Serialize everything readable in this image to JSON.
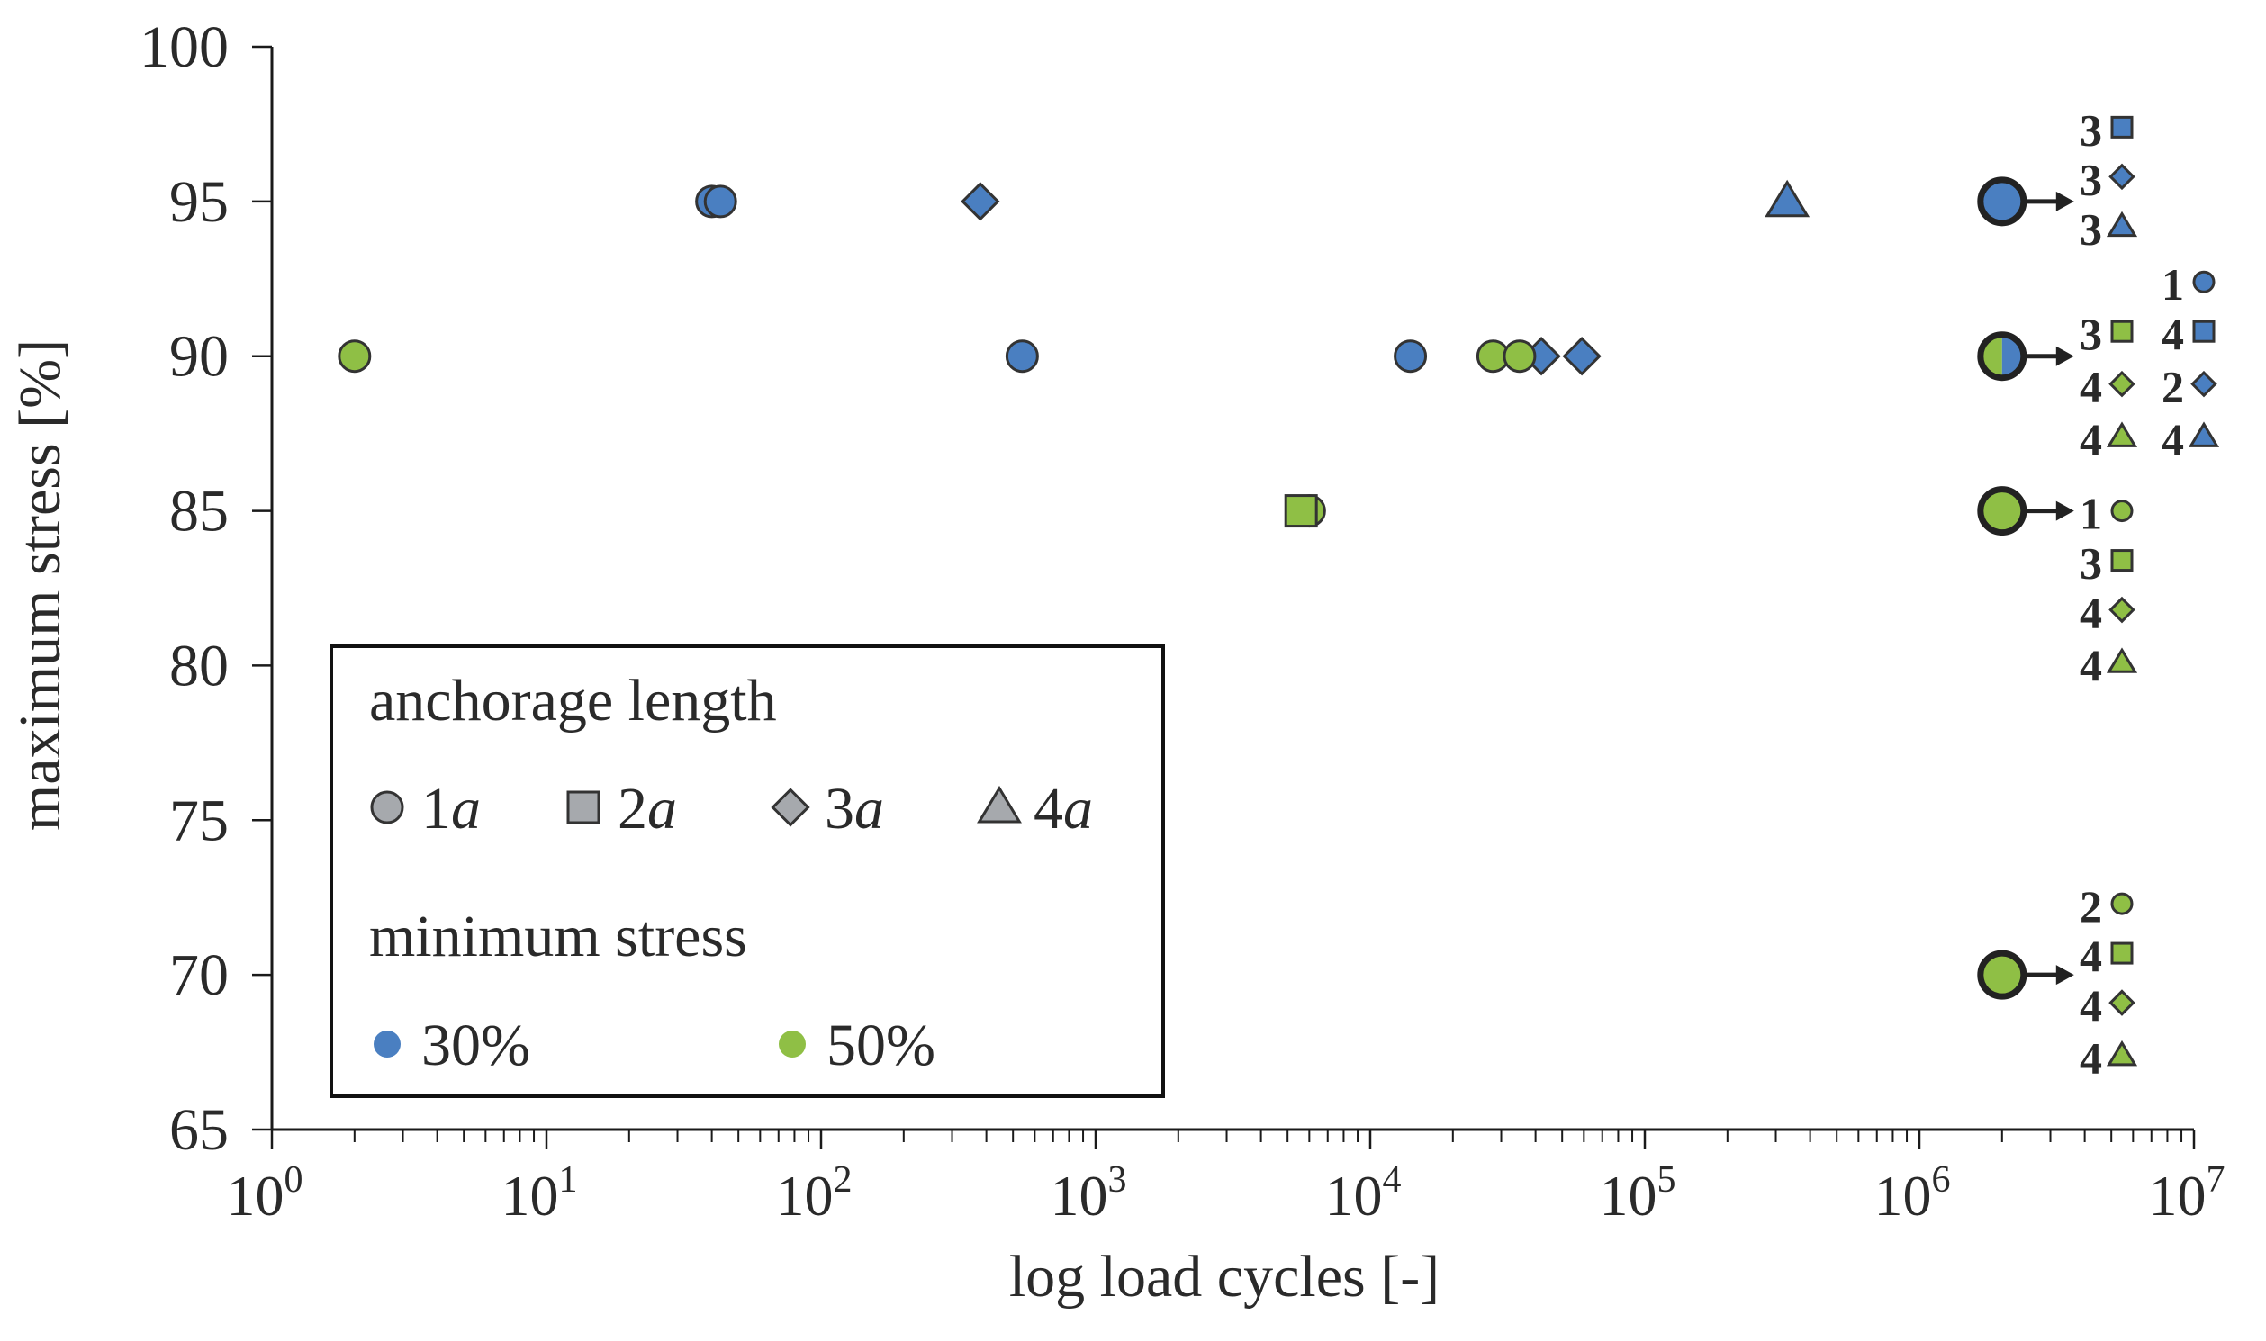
{
  "chart_data": {
    "type": "scatter",
    "title": "",
    "xlabel": "log load cycles [-]",
    "ylabel": "maximum stress [%]",
    "xscale": "log",
    "xlim": [
      1,
      10000000
    ],
    "ylim": [
      65,
      100
    ],
    "x_ticks": [
      {
        "value": 1,
        "base": "10",
        "exp": "0"
      },
      {
        "value": 10,
        "base": "10",
        "exp": "1"
      },
      {
        "value": 100,
        "base": "10",
        "exp": "2"
      },
      {
        "value": 1000,
        "base": "10",
        "exp": "3"
      },
      {
        "value": 10000,
        "base": "10",
        "exp": "4"
      },
      {
        "value": 100000,
        "base": "10",
        "exp": "5"
      },
      {
        "value": 1000000,
        "base": "10",
        "exp": "6"
      },
      {
        "value": 10000000,
        "base": "10",
        "exp": "7"
      }
    ],
    "y_ticks": [
      "65",
      "70",
      "75",
      "80",
      "85",
      "90",
      "95",
      "100"
    ],
    "colors": {
      "min_stress_30": "#4a7fc1",
      "min_stress_50": "#8fbf45",
      "legend_grey": "#a6a9ad"
    },
    "points": [
      {
        "x": 40,
        "y": 95,
        "shape": "circle",
        "min_stress": "30%"
      },
      {
        "x": 43,
        "y": 95,
        "shape": "circle",
        "min_stress": "30%"
      },
      {
        "x": 380,
        "y": 95,
        "shape": "diamond",
        "min_stress": "30%"
      },
      {
        "x": 330000,
        "y": 95,
        "shape": "triangle",
        "min_stress": "30%"
      },
      {
        "x": 2,
        "y": 90,
        "shape": "circle",
        "min_stress": "50%"
      },
      {
        "x": 540,
        "y": 90,
        "shape": "circle",
        "min_stress": "30%"
      },
      {
        "x": 14000,
        "y": 90,
        "shape": "circle",
        "min_stress": "30%"
      },
      {
        "x": 42000,
        "y": 90,
        "shape": "diamond",
        "min_stress": "30%"
      },
      {
        "x": 59000,
        "y": 90,
        "shape": "diamond",
        "min_stress": "30%"
      },
      {
        "x": 28000,
        "y": 90,
        "shape": "circle",
        "min_stress": "50%"
      },
      {
        "x": 35000,
        "y": 90,
        "shape": "circle",
        "min_stress": "50%"
      },
      {
        "x": 6000,
        "y": 85,
        "shape": "circle",
        "min_stress": "50%"
      },
      {
        "x": 5600,
        "y": 85,
        "shape": "square",
        "min_stress": "50%"
      }
    ],
    "run_outs": [
      {
        "x": 2000000,
        "y": 95,
        "min_stress": "30%"
      },
      {
        "x": 2000000,
        "y": 90,
        "min_stress": "mixed"
      },
      {
        "x": 2000000,
        "y": 85,
        "min_stress": "50%"
      },
      {
        "x": 2000000,
        "y": 70,
        "min_stress": "50%"
      }
    ],
    "run_out_counts": [
      {
        "count": "3",
        "shape": "square",
        "min_stress": "30%",
        "column": 1,
        "y": 97.4
      },
      {
        "count": "3",
        "shape": "diamond",
        "min_stress": "30%",
        "column": 1,
        "y": 95.8
      },
      {
        "count": "3",
        "shape": "triangle",
        "min_stress": "30%",
        "column": 1,
        "y": 94.2
      },
      {
        "count": "1",
        "shape": "circle",
        "min_stress": "30%",
        "column": 2,
        "y": 92.4
      },
      {
        "count": "3",
        "shape": "square",
        "min_stress": "50%",
        "column": 1,
        "y": 90.8
      },
      {
        "count": "4",
        "shape": "square",
        "min_stress": "30%",
        "column": 2,
        "y": 90.8
      },
      {
        "count": "4",
        "shape": "diamond",
        "min_stress": "50%",
        "column": 1,
        "y": 89.1
      },
      {
        "count": "2",
        "shape": "diamond",
        "min_stress": "30%",
        "column": 2,
        "y": 89.1
      },
      {
        "count": "4",
        "shape": "triangle",
        "min_stress": "50%",
        "column": 1,
        "y": 87.4
      },
      {
        "count": "4",
        "shape": "triangle",
        "min_stress": "30%",
        "column": 2,
        "y": 87.4
      },
      {
        "count": "1",
        "shape": "circle",
        "min_stress": "50%",
        "column": 1,
        "y": 85.0
      },
      {
        "count": "3",
        "shape": "square",
        "min_stress": "50%",
        "column": 1,
        "y": 83.4
      },
      {
        "count": "4",
        "shape": "diamond",
        "min_stress": "50%",
        "column": 1,
        "y": 81.8
      },
      {
        "count": "4",
        "shape": "triangle",
        "min_stress": "50%",
        "column": 1,
        "y": 80.1
      },
      {
        "count": "2",
        "shape": "circle",
        "min_stress": "50%",
        "column": 1,
        "y": 72.3
      },
      {
        "count": "4",
        "shape": "square",
        "min_stress": "50%",
        "column": 1,
        "y": 70.7
      },
      {
        "count": "4",
        "shape": "diamond",
        "min_stress": "50%",
        "column": 1,
        "y": 69.1
      },
      {
        "count": "4",
        "shape": "triangle",
        "min_stress": "50%",
        "column": 1,
        "y": 67.4
      }
    ],
    "legend": {
      "position": "bottom-left",
      "group1_title": "anchorage length",
      "shapes": [
        {
          "shape": "circle",
          "num": "1",
          "unit": "a"
        },
        {
          "shape": "square",
          "num": "2",
          "unit": "a"
        },
        {
          "shape": "diamond",
          "num": "3",
          "unit": "a"
        },
        {
          "shape": "triangle",
          "num": "4",
          "unit": "a"
        }
      ],
      "group2_title": "minimum stress",
      "stress": [
        {
          "label": "30%",
          "color_key": "min_stress_30"
        },
        {
          "label": "50%",
          "color_key": "min_stress_50"
        }
      ]
    }
  }
}
